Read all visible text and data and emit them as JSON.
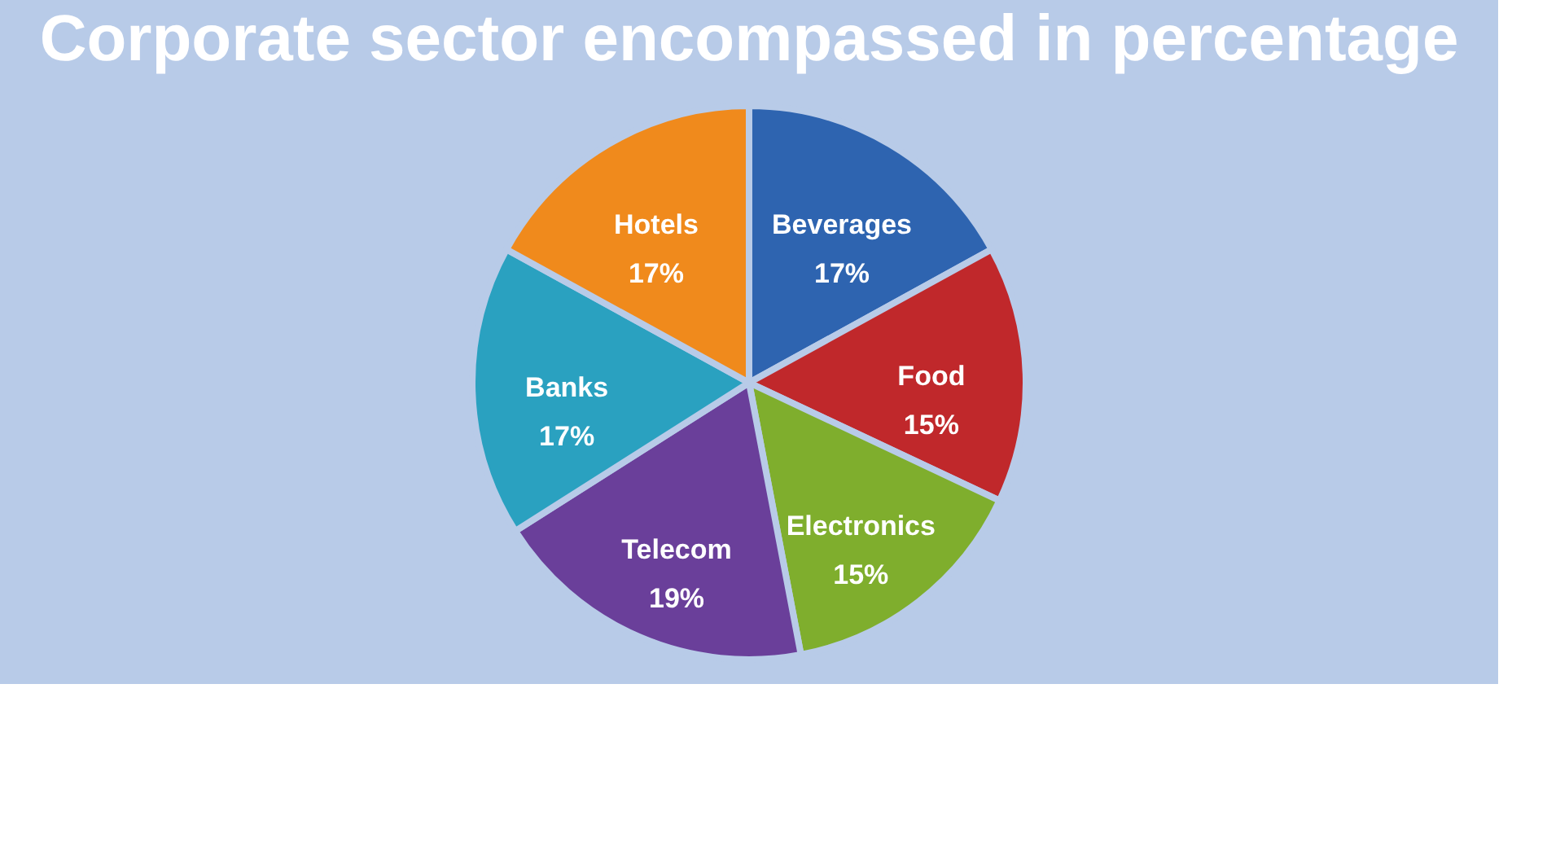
{
  "chart_data": {
    "type": "pie",
    "title": "Corporate sector encompassed in percentage",
    "categories": [
      "Beverages",
      "Food",
      "Electronics",
      "Telecom",
      "Banks",
      "Hotels"
    ],
    "values": [
      17,
      15,
      15,
      19,
      17,
      17
    ],
    "value_labels": [
      "17%",
      "15%",
      "15%",
      "19%",
      "17%",
      "17%"
    ],
    "colors": [
      "#2e64b0",
      "#c0282b",
      "#7fae2d",
      "#6a3f9a",
      "#2aa1c0",
      "#f08a1c"
    ],
    "legend": false
  }
}
